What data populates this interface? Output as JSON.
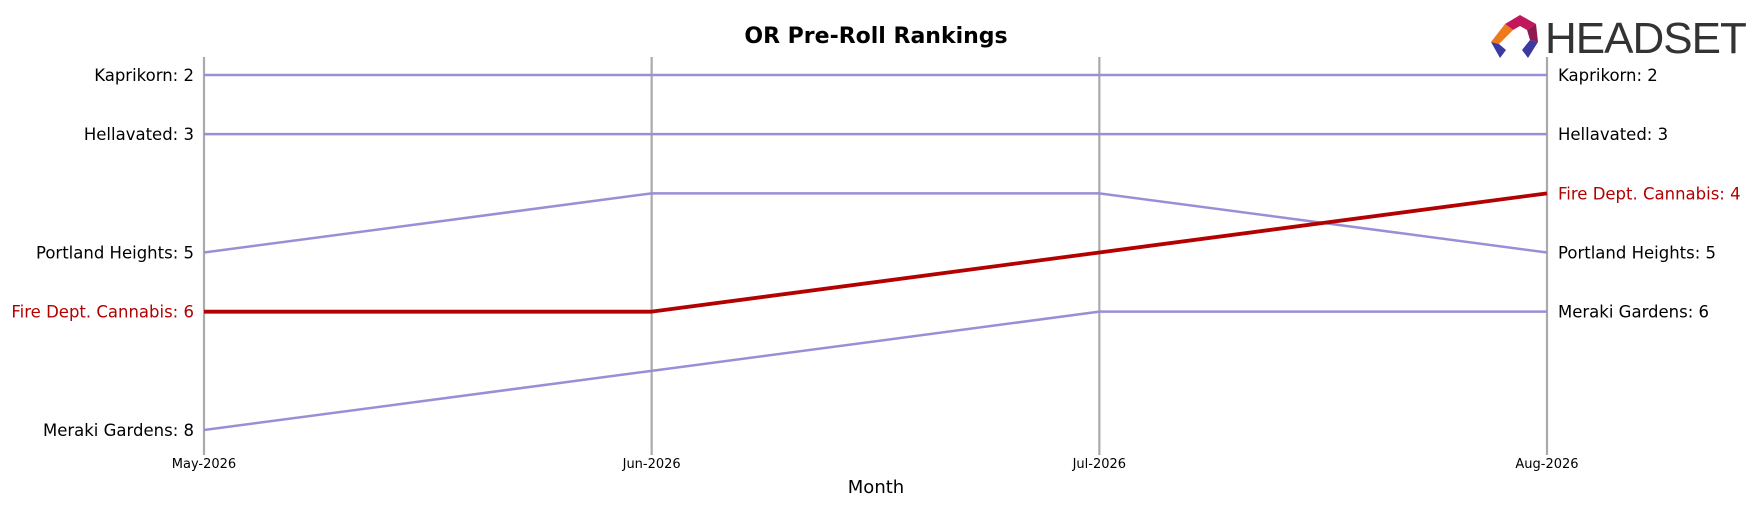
{
  "chart_data": {
    "type": "line",
    "title": "OR Pre-Roll Rankings",
    "xlabel": "Month",
    "ylabel": "",
    "categories": [
      "May-2026",
      "Jun-2026",
      "Jul-2026",
      "Aug-2026"
    ],
    "ylim": [
      8,
      2
    ],
    "y_inverted": true,
    "grid": false,
    "colors": {
      "highlight": "#b30000",
      "other": "#9a8fd6",
      "axis": "#aaaaaa"
    },
    "series": [
      {
        "name": "Kaprikorn",
        "values": [
          2,
          2,
          2,
          2
        ],
        "highlight": false
      },
      {
        "name": "Hellavated",
        "values": [
          3,
          3,
          3,
          3
        ],
        "highlight": false
      },
      {
        "name": "Portland Heights",
        "values": [
          5,
          4,
          4,
          5
        ],
        "highlight": false
      },
      {
        "name": "Fire Dept. Cannabis",
        "values": [
          6,
          6,
          5,
          4
        ],
        "highlight": true
      },
      {
        "name": "Meraki Gardens",
        "values": [
          8,
          7,
          6,
          6
        ],
        "highlight": false
      }
    ],
    "start_labels": [
      "Kaprikorn: 2",
      "Hellavated: 3",
      "Portland Heights: 5",
      "Fire Dept. Cannabis: 6",
      "Meraki Gardens: 8"
    ],
    "end_labels": [
      "Kaprikorn: 2",
      "Hellavated: 3",
      "Portland Heights: 5",
      "Fire Dept. Cannabis: 4",
      "Meraki Gardens: 6"
    ]
  },
  "logo": {
    "text": "HEADSET",
    "icon": "headset-logo-icon"
  }
}
